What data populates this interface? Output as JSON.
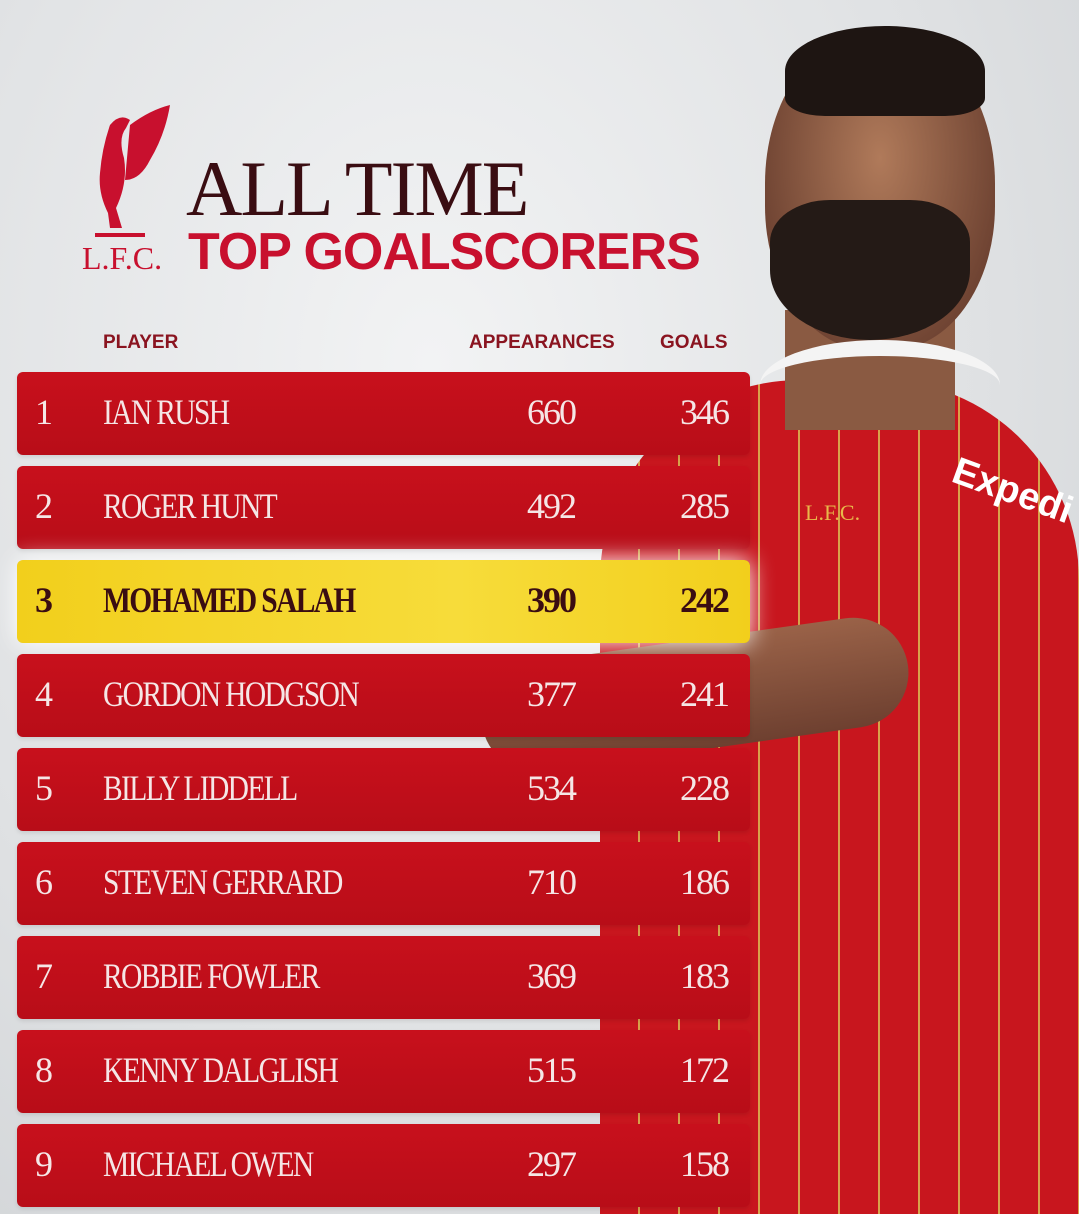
{
  "header": {
    "logo_text": "L.F.C.",
    "title_line1": "ALL TIME",
    "title_line2": "TOP GOALSCORERS"
  },
  "columns": {
    "player": "PLAYER",
    "appearances": "APPEARANCES",
    "goals": "GOALS"
  },
  "rows": [
    {
      "rank": "1",
      "name": "IAN RUSH",
      "appearances": "660",
      "goals": "346"
    },
    {
      "rank": "2",
      "name": "ROGER HUNT",
      "appearances": "492",
      "goals": "285"
    },
    {
      "rank": "3",
      "name": "MOHAMED SALAH",
      "appearances": "390",
      "goals": "242",
      "highlighted": true
    },
    {
      "rank": "4",
      "name": "GORDON HODGSON",
      "appearances": "377",
      "goals": "241"
    },
    {
      "rank": "5",
      "name": "BILLY LIDDELL",
      "appearances": "534",
      "goals": "228"
    },
    {
      "rank": "6",
      "name": "STEVEN GERRARD",
      "appearances": "710",
      "goals": "186"
    },
    {
      "rank": "7",
      "name": "ROBBIE FOWLER",
      "appearances": "369",
      "goals": "183"
    },
    {
      "rank": "8",
      "name": "KENNY DALGLISH",
      "appearances": "515",
      "goals": "172"
    },
    {
      "rank": "9",
      "name": "MICHAEL OWEN",
      "appearances": "297",
      "goals": "158"
    }
  ],
  "shirt": {
    "crest_text": "L.F.C.",
    "sponsor": "Expedi"
  },
  "colors": {
    "red": "#c8102e",
    "highlight": "#f5d52a",
    "title_dark": "#3a0d12"
  }
}
